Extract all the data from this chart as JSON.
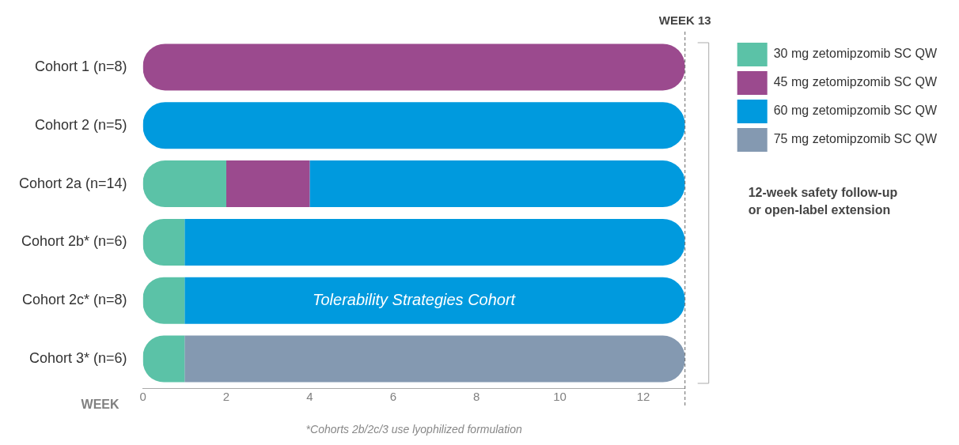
{
  "chart_data": {
    "type": "bar",
    "orientation": "horizontal",
    "stacked": true,
    "categories": [
      "Cohort 1 (n=8)",
      "Cohort 2 (n=5)",
      "Cohort 2a (n=14)",
      "Cohort 2b* (n=6)",
      "Cohort 2c* (n=8)",
      "Cohort 3* (n=6)"
    ],
    "series": [
      {
        "name": "30 mg zetomipzomib SC QW",
        "color": "#5bc2a7",
        "values": [
          null,
          null,
          2,
          1,
          1,
          1
        ]
      },
      {
        "name": "45 mg zetomipzomib SC QW",
        "color": "#9b4a8e",
        "values": [
          13,
          null,
          2,
          null,
          null,
          null
        ]
      },
      {
        "name": "60 mg zetomipzomib SC QW",
        "color": "#009ade",
        "values": [
          null,
          13,
          9,
          12,
          12,
          null
        ]
      },
      {
        "name": "75 mg zetomipzomib SC QW",
        "color": "#8499b1",
        "values": [
          null,
          null,
          null,
          null,
          null,
          12
        ]
      }
    ],
    "xlabel": "WEEK",
    "xlim": [
      0,
      13
    ],
    "xticks": [
      0,
      2,
      4,
      6,
      8,
      10,
      12
    ],
    "grid": false,
    "legend": "top right",
    "ref_lines": [
      {
        "axis": "x",
        "value": 13,
        "label": "WEEK 13",
        "line_style": "dashed",
        "color": "#666666"
      }
    ],
    "annotations": [
      {
        "text": "Tolerability Strategies Cohort",
        "x": 6.5,
        "y": "Cohort 2c* (n=8)"
      },
      "12-week safety follow-up\nor open-label extension",
      "*Cohorts 2b/2c/3 use lyophilized formulation"
    ]
  }
}
